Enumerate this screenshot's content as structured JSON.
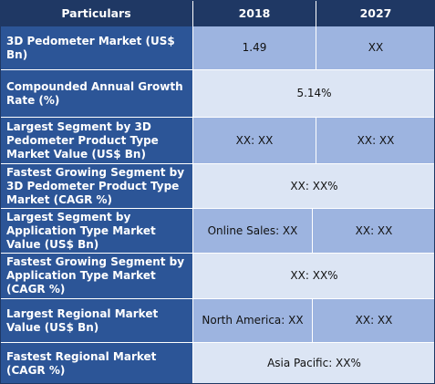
{
  "header": {
    "particulars": "Particulars",
    "year_1": "2018",
    "year_2": "2027"
  },
  "rows": [
    {
      "label": "3D Pedometer Market (US$ Bn)",
      "v2018": "1.49",
      "v2027": "XX"
    },
    {
      "label": "Compounded Annual Growth Rate (%)",
      "merged": "5.14%"
    },
    {
      "label": "Largest Segment by 3D Pedometer Product Type Market Value (US$ Bn)",
      "v2018": "XX: XX",
      "v2027": "XX: XX"
    },
    {
      "label": "Fastest Growing Segment by 3D Pedometer Product Type Market (CAGR %)",
      "merged": "XX: XX%"
    },
    {
      "label": "Largest Segment by Application Type Market Value (US$ Bn)",
      "v2018": "Online Sales: XX",
      "v2027": "XX: XX"
    },
    {
      "label": "Fastest Growing Segment by Application Type Market (CAGR %)",
      "merged": "XX: XX%"
    },
    {
      "label": "Largest Regional Market Value (US$ Bn)",
      "v2018": "North America: XX",
      "v2027": "XX: XX"
    },
    {
      "label": "Fastest Regional Market (CAGR %)",
      "merged": "Asia Pacific: XX%"
    }
  ],
  "colors": {
    "header_bg": "#1f3864",
    "label_bg": "#2c5597",
    "value_dark_bg": "#9db4e0",
    "value_light_bg": "#dce5f4"
  }
}
